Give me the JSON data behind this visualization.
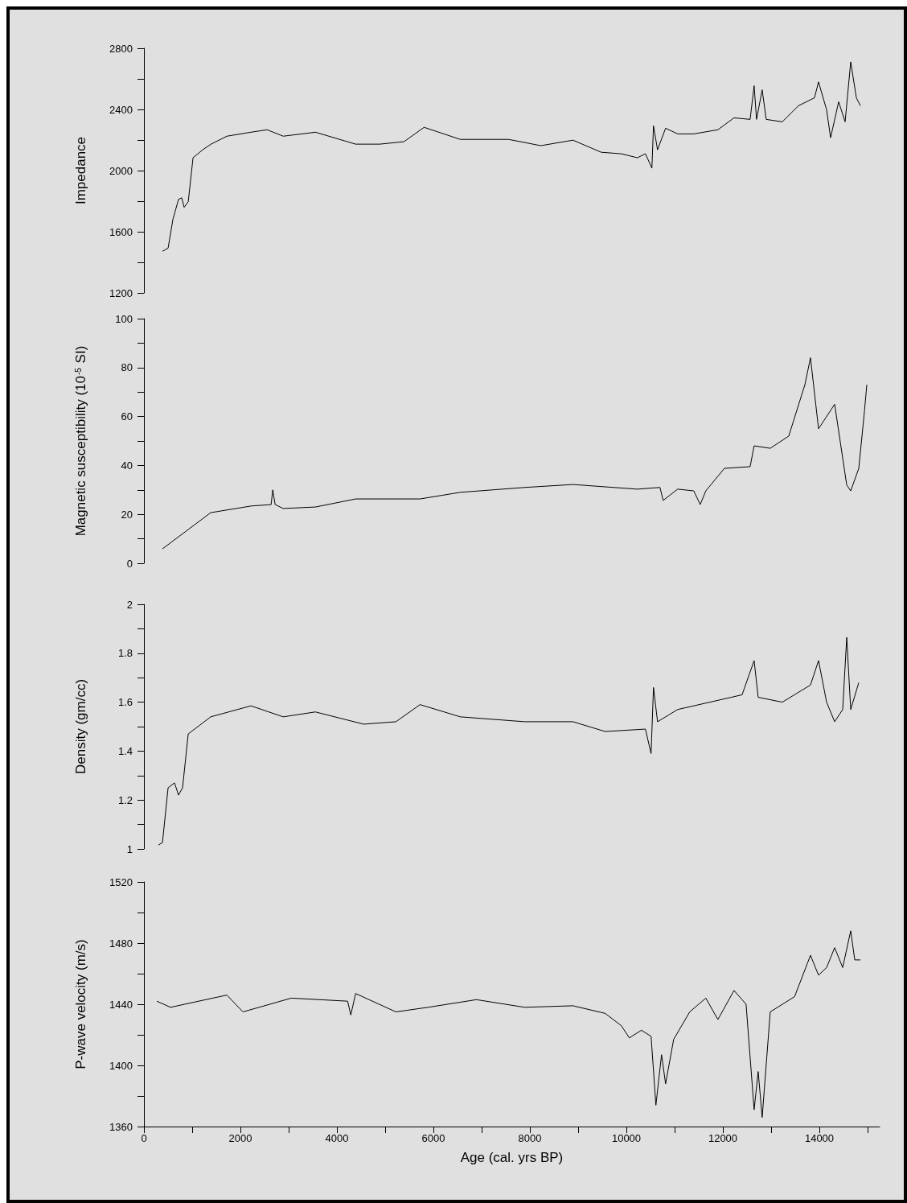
{
  "chart_data": [
    {
      "type": "line",
      "ylabel": "Impedance",
      "ylim": [
        1200,
        2800
      ],
      "tick_labels": "y",
      "marker": "none",
      "line_style": "solid",
      "xticks": [
        0,
        2000,
        4000,
        6000,
        8000,
        10000,
        12000,
        14000
      ],
      "yticks": [
        1200,
        {
          "value": 1400,
          "label": null
        },
        1600,
        {
          "value": 1800,
          "label": null
        },
        2000,
        {
          "value": 2200,
          "label": null
        },
        2400,
        {
          "value": 2600,
          "label": null
        },
        2800
      ],
      "series": [
        {
          "color": "#000000",
          "x": [
            384,
            501,
            601,
            717,
            784,
            834,
            918,
            1018,
            1218,
            1385,
            1719,
            2219,
            2553,
            2887,
            3554,
            4388,
            4889,
            5390,
            5807,
            6558,
            7559,
            8226,
            8893,
            9478,
            9895,
            10228,
            10395,
            10529,
            10562,
            10646,
            10813,
            11063,
            11397,
            11897,
            12231,
            12565,
            12648,
            12698,
            12815,
            12898,
            13232,
            13566,
            13899,
            13983,
            14150,
            14233,
            14400,
            14534,
            14650,
            14767,
            14851
          ],
          "values": [
            1472,
            1493,
            1681,
            1812,
            1822,
            1760,
            1796,
            2084,
            2136,
            2172,
            2225,
            2251,
            2267,
            2225,
            2251,
            2173,
            2173,
            2189,
            2283,
            2204,
            2204,
            2163,
            2199,
            2120,
            2110,
            2084,
            2110,
            2016,
            2293,
            2136,
            2277,
            2240,
            2240,
            2267,
            2345,
            2335,
            2555,
            2335,
            2528,
            2335,
            2319,
            2424,
            2476,
            2580,
            2398,
            2215,
            2450,
            2319,
            2711,
            2476,
            2424
          ]
        }
      ]
    },
    {
      "type": "line",
      "ylabel": "Magnetic susceptibility (10$^{-5}$ SI)",
      "ylim": [
        0,
        100
      ],
      "tick_labels": "y",
      "marker": "none",
      "line_style": "solid",
      "xticks": [
        0,
        2000,
        4000,
        6000,
        8000,
        10000,
        12000,
        14000
      ],
      "yticks": [
        0,
        {
          "value": 10,
          "label": null
        },
        20,
        {
          "value": 30,
          "label": null
        },
        40,
        {
          "value": 50,
          "label": null
        },
        60,
        {
          "value": 70,
          "label": null
        },
        80,
        {
          "value": 90,
          "label": null
        },
        100
      ],
      "series": [
        {
          "color": "#000000",
          "x": [
            384,
            1385,
            2219,
            2636,
            2670,
            2720,
            2887,
            3554,
            4388,
            5723,
            6558,
            7892,
            8893,
            10228,
            10696,
            10763,
            11063,
            11397,
            11530,
            11647,
            12031,
            12565,
            12648,
            12982,
            13366,
            13700,
            13816,
            13983,
            14317,
            14567,
            14650,
            14817,
            14934,
            14984
          ],
          "values": [
            5.9,
            20.7,
            23.4,
            24,
            30,
            24,
            22.4,
            23,
            26.3,
            26.3,
            29,
            31,
            32.2,
            30.3,
            31,
            25.7,
            30.3,
            29.6,
            24,
            29.6,
            38.8,
            39.5,
            48,
            47,
            52,
            73,
            84,
            55,
            65,
            32,
            29.6,
            38.8,
            62,
            73
          ]
        }
      ]
    },
    {
      "type": "line",
      "ylabel": "Density (gm/cc)",
      "ylim": [
        1,
        2
      ],
      "tick_labels": "y",
      "marker": "none",
      "line_style": "solid",
      "xticks": [
        0,
        2000,
        4000,
        6000,
        8000,
        10000,
        12000,
        14000
      ],
      "yticks": [
        1,
        {
          "value": 1.1,
          "label": null
        },
        1.2,
        {
          "value": 1.3,
          "label": null
        },
        1.4,
        {
          "value": 1.5,
          "label": null
        },
        1.6,
        {
          "value": 1.7,
          "label": null
        },
        1.8,
        {
          "value": 1.9,
          "label": null
        },
        2
      ],
      "series": [
        {
          "color": "#000000",
          "x": [
            300,
            384,
            501,
            634,
            717,
            801,
            918,
            1051,
            1385,
            2219,
            2887,
            3554,
            4555,
            5223,
            5723,
            6558,
            7892,
            8893,
            9562,
            10395,
            10512,
            10562,
            10646,
            11063,
            11730,
            12398,
            12648,
            12732,
            13232,
            13816,
            13983,
            14150,
            14317,
            14484,
            14567,
            14650,
            14817
          ],
          "values": [
            1.016,
            1.026,
            1.25,
            1.27,
            1.22,
            1.25,
            1.47,
            1.49,
            1.54,
            1.585,
            1.54,
            1.56,
            1.51,
            1.52,
            1.59,
            1.54,
            1.52,
            1.52,
            1.48,
            1.49,
            1.39,
            1.66,
            1.52,
            1.57,
            1.6,
            1.63,
            1.77,
            1.62,
            1.6,
            1.67,
            1.77,
            1.6,
            1.52,
            1.57,
            1.865,
            1.57,
            1.68
          ]
        }
      ]
    },
    {
      "type": "line",
      "ylabel": "P-wave velocity (m/s)",
      "xlabel": "Age (cal. yrs BP)",
      "xlim": [
        0,
        15250
      ],
      "ylim": [
        1360,
        1520
      ],
      "marker": "none",
      "line_style": "solid",
      "xticks": [
        0,
        {
          "value": 1000,
          "label": null
        },
        2000,
        {
          "value": 3000,
          "label": null
        },
        4000,
        {
          "value": 5000,
          "label": null
        },
        6000,
        {
          "value": 7000,
          "label": null
        },
        8000,
        {
          "value": 9000,
          "label": null
        },
        10000,
        {
          "value": 11000,
          "label": null
        },
        12000,
        {
          "value": 13000,
          "label": null
        },
        14000,
        {
          "value": 15000,
          "label": null
        }
      ],
      "yticks": [
        1360,
        {
          "value": 1380,
          "label": null
        },
        1400,
        {
          "value": 1420,
          "label": null
        },
        1440,
        {
          "value": 1460,
          "label": null
        },
        1480,
        {
          "value": 1500,
          "label": null
        },
        1520
      ],
      "series": [
        {
          "color": "#000000",
          "x": [
            267,
            551,
            1719,
            2052,
            3054,
            4222,
            4288,
            4388,
            5223,
            5890,
            6891,
            7892,
            8893,
            9562,
            9895,
            10062,
            10312,
            10512,
            10612,
            10729,
            10813,
            10980,
            11313,
            11647,
            11897,
            12231,
            12481,
            12648,
            12732,
            12815,
            12982,
            13487,
            13816,
            13983,
            14150,
            14317,
            14484,
            14650,
            14734,
            14851
          ],
          "values": [
            1442,
            1438,
            1446,
            1435,
            1444,
            1442,
            1433,
            1447,
            1435,
            1438,
            1443,
            1438,
            1439,
            1434,
            1426,
            1418,
            1423,
            1419,
            1374,
            1407,
            1388,
            1417,
            1435,
            1444,
            1430,
            1449,
            1440,
            1371,
            1396,
            1366,
            1435,
            1445,
            1472,
            1459,
            1464,
            1477,
            1464,
            1488,
            1469,
            1469
          ]
        }
      ]
    }
  ]
}
